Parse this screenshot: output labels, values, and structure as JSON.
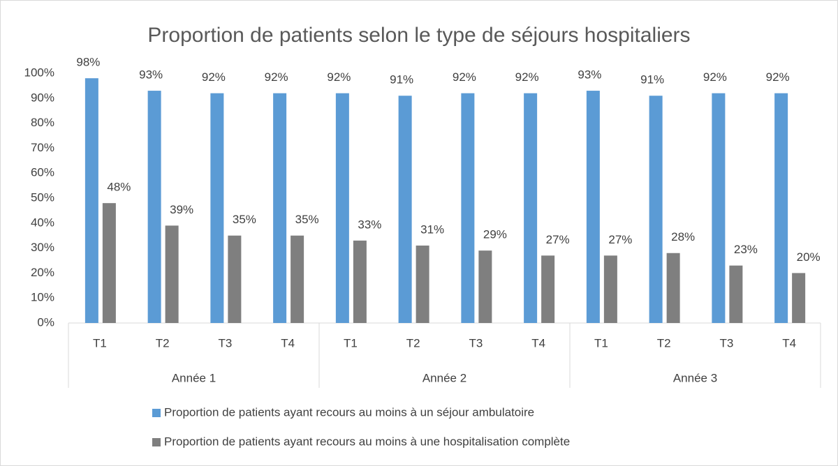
{
  "chart_data": {
    "type": "bar",
    "title": "Proportion de patients selon le type de séjours hospitaliers",
    "categories": [
      "T1",
      "T2",
      "T3",
      "T4",
      "T1",
      "T2",
      "T3",
      "T4",
      "T1",
      "T2",
      "T3",
      "T4"
    ],
    "category_groups": [
      "Année 1",
      "Année 2",
      "Année 3"
    ],
    "series": [
      {
        "name": "Proportion de patients ayant recours au moins à un séjour ambulatoire",
        "color": "#5b9bd5",
        "values": [
          98,
          93,
          92,
          92,
          92,
          91,
          92,
          92,
          93,
          91,
          92,
          92
        ],
        "value_labels": [
          "98%",
          "93%",
          "92%",
          "92%",
          "92%",
          "91%",
          "92%",
          "92%",
          "93%",
          "91%",
          "92%",
          "92%"
        ]
      },
      {
        "name": "Proportion de patients ayant recours au moins à une hospitalisation complète",
        "color": "#7f7f7f",
        "values": [
          48,
          39,
          35,
          35,
          33,
          31,
          29,
          27,
          27,
          28,
          23,
          20
        ],
        "value_labels": [
          "48%",
          "39%",
          "35%",
          "35%",
          "33%",
          "31%",
          "29%",
          "27%",
          "27%",
          "28%",
          "23%",
          "20%"
        ]
      }
    ],
    "ylim": [
      0,
      100
    ],
    "yticks": [
      {
        "value": 0,
        "label": "0%"
      },
      {
        "value": 10,
        "label": "10%"
      },
      {
        "value": 20,
        "label": "20%"
      },
      {
        "value": 30,
        "label": "30%"
      },
      {
        "value": 40,
        "label": "40%"
      },
      {
        "value": 50,
        "label": "50%"
      },
      {
        "value": 60,
        "label": "60%"
      },
      {
        "value": 70,
        "label": "70%"
      },
      {
        "value": 80,
        "label": "80%"
      },
      {
        "value": 90,
        "label": "90%"
      },
      {
        "value": 100,
        "label": "100%"
      }
    ],
    "grid": false,
    "legend": "bottom"
  }
}
